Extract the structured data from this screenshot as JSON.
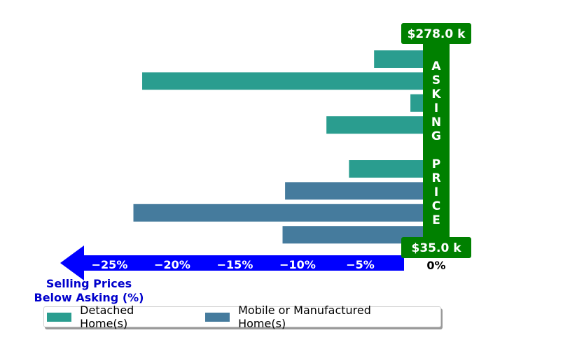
{
  "chart_data": {
    "type": "bar",
    "orientation": "horizontal",
    "series": [
      {
        "name": "Detached Home(s)",
        "color": "#2a9d8f",
        "values": [
          -3.9,
          -22.4,
          -1.0,
          -7.7,
          1.0,
          -5.9
        ]
      },
      {
        "name": "Mobile or Manufactured Home(s)",
        "color": "#457b9d",
        "values": [
          -11.0,
          -23.1,
          -11.2
        ]
      }
    ],
    "bars_top_to_bottom": [
      {
        "series": 0,
        "value": -3.9
      },
      {
        "series": 0,
        "value": -22.4
      },
      {
        "series": 0,
        "value": -1.0
      },
      {
        "series": 0,
        "value": -7.7
      },
      {
        "series": 0,
        "value": 1.0
      },
      {
        "series": 0,
        "value": -5.9
      },
      {
        "series": 1,
        "value": -11.0
      },
      {
        "series": 1,
        "value": -23.1
      },
      {
        "series": 1,
        "value": -11.2
      }
    ],
    "xlim": [
      -30,
      2
    ],
    "ticks": [
      -25,
      -20,
      -15,
      -10,
      -5
    ],
    "tick_labels": [
      "−25%",
      "−20%",
      "−15%",
      "−10%",
      "−5%"
    ],
    "zero_label": "0%",
    "price_high": "$278.0 k",
    "price_low": "$35.0 k",
    "asking_price_text": "ASKING PRICE",
    "axis_caption": [
      "Selling Prices",
      "Below Asking (%)"
    ],
    "legend_placement": "bottom",
    "colors": {
      "arrow": "#0000ff",
      "asking_price": "#008000",
      "caption": "#0000cc"
    }
  }
}
